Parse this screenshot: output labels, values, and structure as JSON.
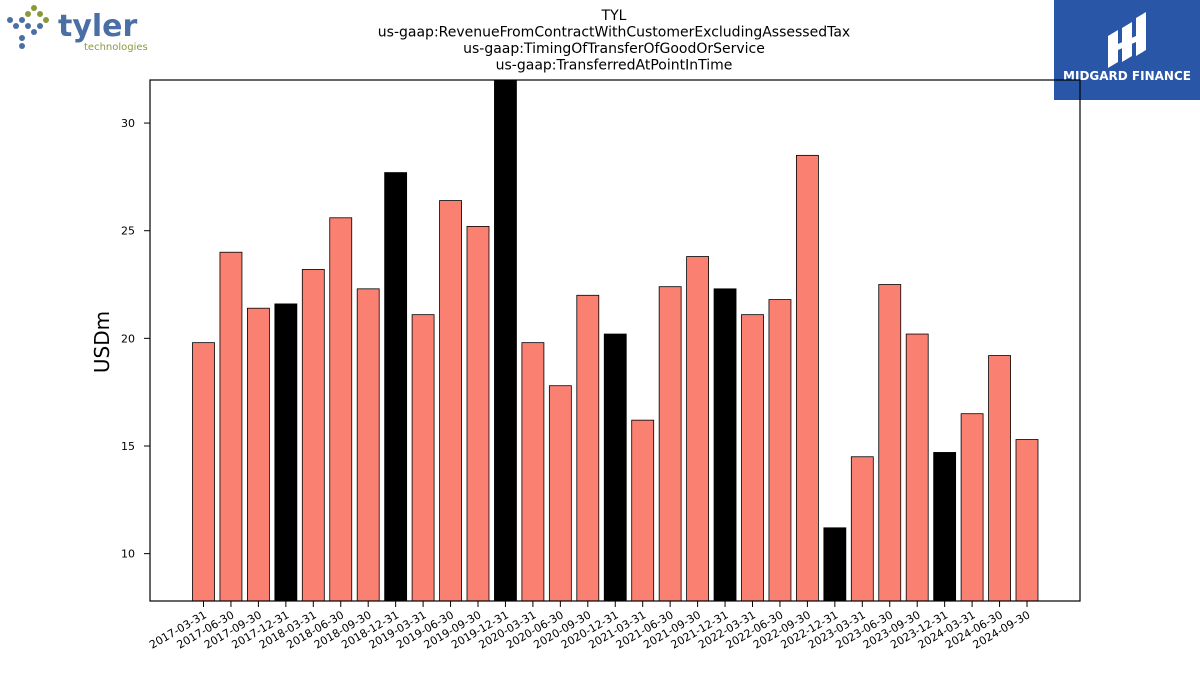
{
  "logos": {
    "left": {
      "name": "tyler",
      "sub": "technologies",
      "icon": "tyler-dots-icon"
    },
    "right": {
      "name": "MIDGARD FINANCE",
      "background": "#2a56a8",
      "icon": "midgard-m-icon"
    }
  },
  "chart_data": {
    "type": "bar",
    "title_lines": [
      "TYL",
      "us-gaap:RevenueFromContractWithCustomerExcludingAssessedTax",
      "us-gaap:TimingOfTransferOfGoodOrService",
      "us-gaap:TransferredAtPointInTime"
    ],
    "xlabel": "",
    "ylabel": "USDm",
    "ylim": [
      7.8,
      32
    ],
    "yticks": [
      10,
      15,
      20,
      25,
      30
    ],
    "colors": {
      "quarter": "#fa8072",
      "year_end": "#000000"
    },
    "categories": [
      "2017-03-31",
      "2017-06-30",
      "2017-09-30",
      "2017-12-31",
      "2018-03-31",
      "2018-06-30",
      "2018-09-30",
      "2018-12-31",
      "2019-03-31",
      "2019-06-30",
      "2019-09-30",
      "2019-12-31",
      "2020-03-31",
      "2020-06-30",
      "2020-09-30",
      "2020-12-31",
      "2021-03-31",
      "2021-06-30",
      "2021-09-30",
      "2021-12-31",
      "2022-03-31",
      "2022-06-30",
      "2022-09-30",
      "2022-12-31",
      "2023-03-31",
      "2023-06-30",
      "2023-09-30",
      "2023-12-31",
      "2024-03-31",
      "2024-06-30",
      "2024-09-30"
    ],
    "values": [
      19.8,
      24.0,
      21.4,
      21.6,
      23.2,
      25.6,
      22.3,
      27.7,
      21.1,
      26.4,
      25.2,
      32.0,
      19.8,
      17.8,
      22.0,
      20.2,
      16.2,
      22.4,
      23.8,
      22.3,
      21.1,
      21.8,
      28.5,
      11.2,
      14.5,
      22.5,
      20.2,
      14.7,
      16.5,
      19.2,
      15.3
    ],
    "highlight": [
      false,
      false,
      false,
      true,
      false,
      false,
      false,
      true,
      false,
      false,
      false,
      true,
      false,
      false,
      false,
      true,
      false,
      false,
      false,
      true,
      false,
      false,
      false,
      true,
      false,
      false,
      false,
      true,
      false,
      false,
      false
    ],
    "grid": false,
    "legend": "none"
  }
}
